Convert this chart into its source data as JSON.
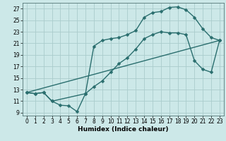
{
  "xlabel": "Humidex (Indice chaleur)",
  "background_color": "#cce8e8",
  "grid_color": "#aacccc",
  "line_color": "#2a6e6e",
  "xlim": [
    -0.5,
    23.5
  ],
  "ylim": [
    8.5,
    28.0
  ],
  "xticks": [
    0,
    1,
    2,
    3,
    4,
    5,
    6,
    7,
    8,
    9,
    10,
    11,
    12,
    13,
    14,
    15,
    16,
    17,
    18,
    19,
    20,
    21,
    22,
    23
  ],
  "yticks": [
    9,
    11,
    13,
    15,
    17,
    19,
    21,
    23,
    25,
    27
  ],
  "line1_x": [
    0,
    1,
    2,
    3,
    4,
    5,
    6,
    7,
    8,
    9,
    10,
    11,
    12,
    13,
    14,
    15,
    16,
    17,
    18,
    19,
    20,
    21,
    22,
    23
  ],
  "line1_y": [
    12.5,
    12.3,
    12.5,
    11.0,
    10.3,
    10.2,
    9.2,
    12.3,
    13.5,
    14.5,
    16.0,
    17.5,
    18.5,
    20.0,
    21.8,
    22.5,
    23.0,
    22.8,
    22.8,
    22.5,
    18.0,
    16.5,
    16.0,
    21.5
  ],
  "line2_x": [
    0,
    1,
    2,
    3,
    7,
    8,
    9,
    10,
    11,
    12,
    13,
    14,
    15,
    16,
    17,
    18,
    19,
    20,
    21,
    22,
    23
  ],
  "line2_y": [
    12.5,
    12.3,
    12.5,
    11.0,
    12.3,
    20.5,
    21.5,
    21.8,
    22.0,
    22.5,
    23.2,
    25.5,
    26.3,
    26.5,
    27.2,
    27.3,
    26.8,
    25.5,
    23.5,
    22.0,
    21.5
  ],
  "line3_x": [
    0,
    23
  ],
  "line3_y": [
    12.5,
    21.5
  ],
  "marker_size": 2.5,
  "linewidth": 1.0,
  "tick_fontsize": 5.5,
  "xlabel_fontsize": 6.5
}
